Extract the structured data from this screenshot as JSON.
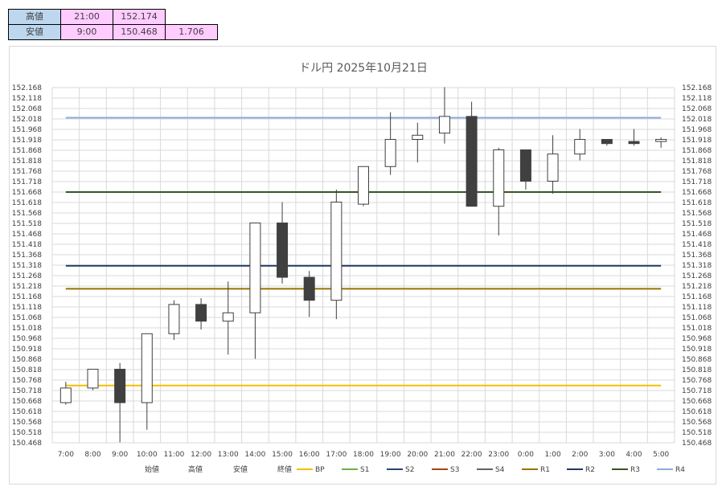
{
  "summary_table": {
    "rows": [
      {
        "label": "高値",
        "time": "21:00",
        "price": "152.174",
        "diff": ""
      },
      {
        "label": "安値",
        "time": "9:00",
        "price": "150.468",
        "diff": "1.706"
      }
    ]
  },
  "chart_data": {
    "type": "candlestick",
    "title": "ドル円  2025年10月21日",
    "categories": [
      "7:00",
      "8:00",
      "9:00",
      "10:00",
      "11:00",
      "12:00",
      "13:00",
      "14:00",
      "15:00",
      "16:00",
      "17:00",
      "18:00",
      "19:00",
      "20:00",
      "21:00",
      "22:00",
      "23:00",
      "0:00",
      "1:00",
      "2:00",
      "3:00",
      "4:00",
      "5:00"
    ],
    "ylim": [
      150.468,
      152.168
    ],
    "y_ticks": [
      "152.168",
      "152.118",
      "152.068",
      "152.018",
      "151.968",
      "151.918",
      "151.868",
      "151.818",
      "151.768",
      "151.718",
      "151.668",
      "151.618",
      "151.568",
      "151.518",
      "151.468",
      "151.418",
      "151.368",
      "151.318",
      "151.268",
      "151.218",
      "151.168",
      "151.118",
      "151.068",
      "151.018",
      "150.968",
      "150.918",
      "150.868",
      "150.818",
      "150.768",
      "150.718",
      "150.668",
      "150.618",
      "150.568",
      "150.518",
      "150.468"
    ],
    "grid": true,
    "ohlc": [
      {
        "open": 150.66,
        "high": 150.76,
        "low": 150.65,
        "close": 150.73
      },
      {
        "open": 150.73,
        "high": 150.82,
        "low": 150.72,
        "close": 150.82
      },
      {
        "open": 150.82,
        "high": 150.85,
        "low": 150.47,
        "close": 150.66
      },
      {
        "open": 150.66,
        "high": 150.99,
        "low": 150.53,
        "close": 150.99
      },
      {
        "open": 150.99,
        "high": 151.15,
        "low": 150.96,
        "close": 151.13
      },
      {
        "open": 151.13,
        "high": 151.16,
        "low": 151.01,
        "close": 151.05
      },
      {
        "open": 151.05,
        "high": 151.24,
        "low": 150.89,
        "close": 151.09
      },
      {
        "open": 151.09,
        "high": 151.52,
        "low": 150.87,
        "close": 151.52
      },
      {
        "open": 151.52,
        "high": 151.62,
        "low": 151.23,
        "close": 151.26
      },
      {
        "open": 151.26,
        "high": 151.29,
        "low": 151.07,
        "close": 151.15
      },
      {
        "open": 151.15,
        "high": 151.68,
        "low": 151.06,
        "close": 151.62
      },
      {
        "open": 151.61,
        "high": 151.79,
        "low": 151.6,
        "close": 151.79
      },
      {
        "open": 151.79,
        "high": 152.05,
        "low": 151.75,
        "close": 151.92
      },
      {
        "open": 151.92,
        "high": 152.0,
        "low": 151.81,
        "close": 151.94
      },
      {
        "open": 151.95,
        "high": 152.17,
        "low": 151.9,
        "close": 152.03
      },
      {
        "open": 152.03,
        "high": 152.1,
        "low": 151.6,
        "close": 151.6
      },
      {
        "open": 151.6,
        "high": 151.88,
        "low": 151.46,
        "close": 151.87
      },
      {
        "open": 151.87,
        "high": 151.87,
        "low": 151.68,
        "close": 151.72
      },
      {
        "open": 151.72,
        "high": 151.94,
        "low": 151.66,
        "close": 151.85
      },
      {
        "open": 151.85,
        "high": 151.97,
        "low": 151.82,
        "close": 151.92
      },
      {
        "open": 151.92,
        "high": 151.92,
        "low": 151.89,
        "close": 151.9
      },
      {
        "open": 151.91,
        "high": 151.97,
        "low": 151.89,
        "close": 151.9
      },
      {
        "open": 151.91,
        "high": 151.93,
        "low": 151.88,
        "close": 151.92
      }
    ],
    "pivot_lines": [
      {
        "name": "BP",
        "value": 150.742,
        "color": "#f0c000"
      },
      {
        "name": "S1",
        "value": null,
        "color": "#70ad47"
      },
      {
        "name": "S2",
        "value": null,
        "color": "#264478"
      },
      {
        "name": "S3",
        "value": null,
        "color": "#9e480e"
      },
      {
        "name": "S4",
        "value": null,
        "color": "#636363"
      },
      {
        "name": "R1",
        "value": 151.205,
        "color": "#997300"
      },
      {
        "name": "R2",
        "value": 151.315,
        "color": "#203864"
      },
      {
        "name": "R3",
        "value": 151.668,
        "color": "#375623"
      },
      {
        "name": "R4",
        "value": 152.024,
        "color": "#8faadc"
      }
    ],
    "legend_ohlc": [
      "始値",
      "高値",
      "安値",
      "終値"
    ],
    "legend_position": "bottom",
    "colors": {
      "up_fill": "#ffffff",
      "down_fill": "#404040",
      "candle_stroke": "#404040",
      "grid": "#d9d9d9"
    }
  }
}
